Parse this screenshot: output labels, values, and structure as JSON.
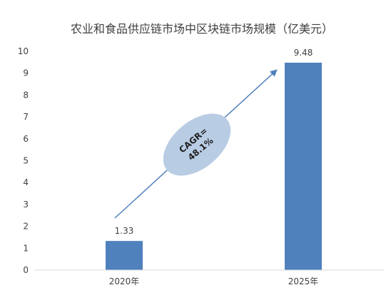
{
  "chart_data": {
    "type": "bar",
    "title": "农业和食品供应链市场中区块链市场规模（亿美元）",
    "categories": [
      "2020年",
      "2025年"
    ],
    "values": [
      1.33,
      9.48
    ],
    "data_labels": [
      "1.33",
      "9.48"
    ],
    "ylim": [
      0,
      10
    ],
    "yticks": [
      0,
      1,
      2,
      3,
      4,
      5,
      6,
      7,
      8,
      9,
      10
    ],
    "grid": false,
    "bar_color": "#4f81bd",
    "annotation": {
      "line1": "CAGR=",
      "line2": "48.1%",
      "ellipse_color": "#b8cce4",
      "arrow_color": "#4f81bd"
    }
  }
}
